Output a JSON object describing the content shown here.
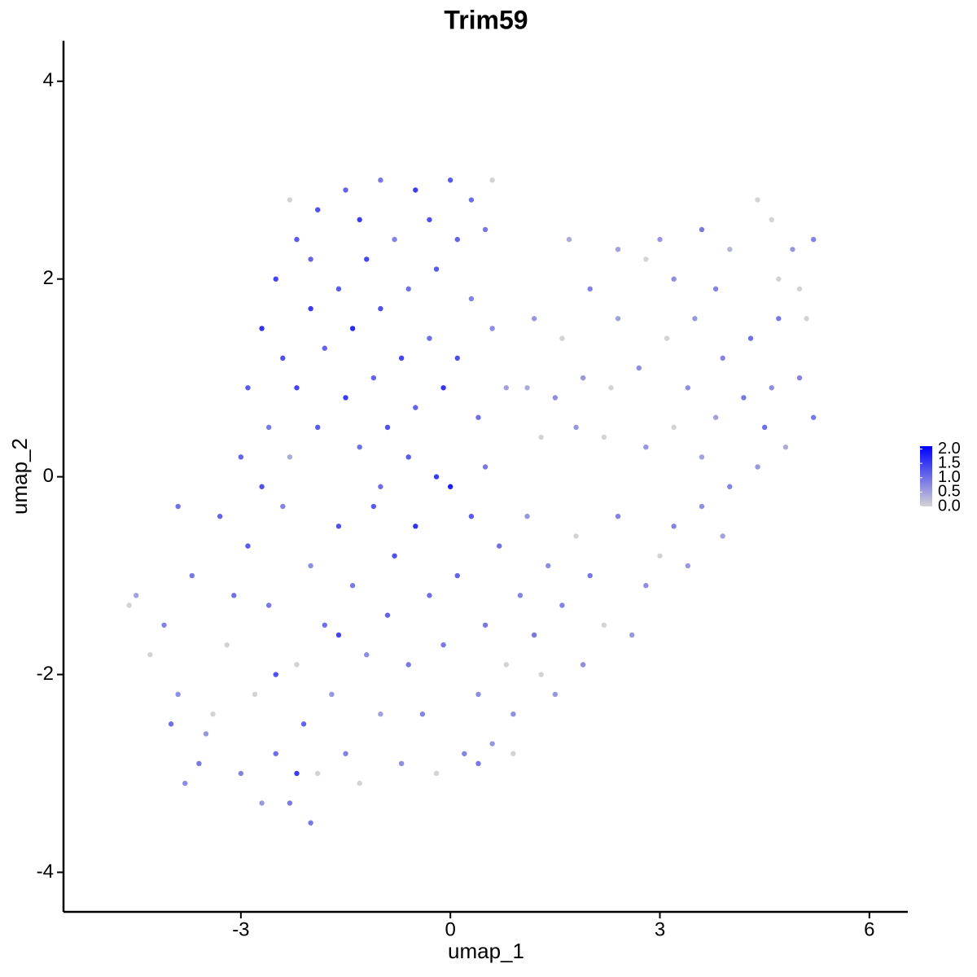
{
  "chart_data": {
    "type": "scatter",
    "title": "Trim59",
    "xlabel": "umap_1",
    "ylabel": "umap_2",
    "xlim": [
      -5.54,
      6.55
    ],
    "ylim": [
      -4.4,
      4.41
    ],
    "xticks": [
      -3,
      0,
      3,
      6
    ],
    "yticks": [
      -4,
      -2,
      0,
      2,
      4
    ],
    "colorlim": [
      0,
      2.1
    ],
    "colorbar_ticks": [
      {
        "value": 0,
        "label": "0.0"
      },
      0.5,
      {
        "value": 1,
        "label": "1.0"
      },
      1.5,
      {
        "value": 2,
        "label": "2.0"
      }
    ],
    "low_color": "#d3d3d3",
    "high_color": "#0000ff",
    "x": [
      -2.5,
      -2.2,
      -1.9,
      -1.5,
      -1.0,
      -0.5,
      0.0,
      0.3,
      -2.7,
      -2.4,
      -2.0,
      -1.6,
      -1.2,
      -0.8,
      -0.3,
      0.5,
      -2.9,
      -2.6,
      -2.2,
      -1.8,
      -1.4,
      -1.0,
      -0.6,
      -0.2,
      0.3,
      -3.0,
      -2.7,
      -2.3,
      -1.9,
      -1.5,
      -1.1,
      -0.7,
      -0.3,
      0.1,
      0.6,
      -1.3,
      -0.9,
      -0.5,
      -0.1,
      0.4,
      0.8,
      -0.2,
      0.0,
      -0.6,
      0.5,
      -2.0,
      -1.3,
      0.1,
      -2.3,
      0.6,
      1.2,
      1.6,
      2.0,
      2.4,
      2.8,
      3.2,
      3.6,
      4.0,
      4.4,
      4.6,
      4.9,
      5.2,
      5.0,
      4.7,
      4.3,
      3.9,
      3.5,
      3.1,
      2.7,
      2.3,
      1.9,
      1.5,
      1.1,
      1.3,
      1.8,
      2.2,
      3.4,
      3.8,
      4.2,
      4.6,
      5.0,
      5.2,
      4.8,
      4.4,
      4.0,
      3.6,
      3.2,
      2.8,
      4.7,
      5.1,
      4.5,
      3.0,
      2.4,
      3.8,
      1.7,
      -4.6,
      -4.5,
      -4.3,
      -4.1,
      -3.9,
      -3.7,
      -3.5,
      -3.3,
      -3.2,
      -3.0,
      -2.9,
      -2.8,
      -2.6,
      -2.5,
      -2.4,
      -2.3,
      -2.2,
      -2.1,
      -2.0,
      -1.9,
      -1.8,
      -1.7,
      -1.6,
      -1.5,
      -1.4,
      -1.3,
      -1.2,
      -1.1,
      -1.0,
      -0.9,
      -0.8,
      -0.7,
      -0.6,
      -0.5,
      -0.4,
      -0.3,
      -0.2,
      -0.1,
      -3.6,
      -3.8,
      -2.7,
      -2.0,
      -1.6,
      -2.5,
      -3.1,
      -3.4,
      -4.0,
      -2.2,
      -1.0,
      -3.9,
      0.2,
      0.4,
      0.5,
      0.6,
      0.7,
      0.8,
      0.9,
      1.0,
      1.1,
      1.2,
      1.3,
      1.4,
      1.5,
      1.6,
      1.8,
      1.9,
      2.0,
      2.2,
      2.4,
      2.6,
      2.8,
      3.0,
      3.2,
      3.4,
      3.6,
      3.9,
      0.3,
      0.1,
      0.9,
      0.4
    ],
    "y": [
      2.0,
      2.4,
      2.7,
      2.9,
      3.0,
      2.9,
      3.0,
      2.8,
      1.5,
      1.2,
      1.7,
      1.9,
      2.2,
      2.4,
      2.6,
      2.5,
      0.9,
      0.5,
      0.9,
      1.3,
      1.5,
      1.7,
      1.9,
      2.1,
      1.8,
      0.2,
      -0.1,
      0.2,
      0.5,
      0.8,
      1.0,
      1.2,
      1.4,
      1.2,
      1.5,
      0.3,
      0.5,
      0.7,
      0.9,
      0.6,
      0.9,
      0.0,
      -0.1,
      0.2,
      0.1,
      2.2,
      2.6,
      2.4,
      2.8,
      3.0,
      1.6,
      1.4,
      1.9,
      1.6,
      2.2,
      2.0,
      2.5,
      2.3,
      2.8,
      2.6,
      2.3,
      2.4,
      1.9,
      1.6,
      1.4,
      1.2,
      1.6,
      1.4,
      1.1,
      0.9,
      1.0,
      0.8,
      0.9,
      0.4,
      0.5,
      0.4,
      0.9,
      0.6,
      0.8,
      0.9,
      1.0,
      0.6,
      0.3,
      0.1,
      -0.1,
      0.2,
      0.5,
      0.3,
      2.0,
      1.6,
      0.5,
      2.4,
      2.3,
      1.9,
      2.4,
      -1.3,
      -1.2,
      -1.8,
      -1.5,
      -2.2,
      -1.0,
      -2.6,
      -0.4,
      -1.7,
      -3.0,
      -0.7,
      -2.2,
      -1.3,
      -2.8,
      -0.3,
      -3.3,
      -1.9,
      -2.5,
      -0.9,
      -3.0,
      -1.5,
      -2.2,
      -0.5,
      -2.8,
      -1.1,
      -3.1,
      -1.8,
      -0.3,
      -2.4,
      -1.4,
      -0.8,
      -2.9,
      -1.9,
      -0.5,
      -2.4,
      -1.2,
      -3.0,
      -1.7,
      -2.9,
      -3.1,
      -3.3,
      -3.5,
      -1.6,
      -2.0,
      -1.2,
      -2.4,
      -2.5,
      -3.0,
      -0.1,
      -0.3,
      -2.8,
      -2.2,
      -1.5,
      -2.7,
      -0.7,
      -1.9,
      -2.4,
      -1.2,
      -0.4,
      -1.6,
      -2.0,
      -0.9,
      -2.2,
      -1.3,
      -0.6,
      -1.9,
      -1.0,
      -1.5,
      -0.4,
      -1.6,
      -1.1,
      -0.8,
      -0.5,
      -0.9,
      -0.3,
      -0.6,
      -0.4,
      -1.0,
      -2.8,
      -2.9
    ],
    "values": [
      1.4,
      1.2,
      1.3,
      1.1,
      0.9,
      1.5,
      1.2,
      1.0,
      1.6,
      1.3,
      1.5,
      1.2,
      1.4,
      0.8,
      1.3,
      0.9,
      1.2,
      0.9,
      1.4,
      1.1,
      1.7,
      1.3,
      1.0,
      1.2,
      0.8,
      1.1,
      1.3,
      0.4,
      1.2,
      1.5,
      1.1,
      1.4,
      1.0,
      1.3,
      0.7,
      1.0,
      1.3,
      1.1,
      1.6,
      1.0,
      0.5,
      1.5,
      1.8,
      1.2,
      0.9,
      1.1,
      1.5,
      1.1,
      0,
      0,
      0.6,
      0,
      0.8,
      0.5,
      0,
      0.7,
      0.9,
      0.3,
      0,
      0,
      0.6,
      0.8,
      0,
      0.9,
      1.0,
      0.8,
      0.6,
      0,
      0.7,
      0,
      0.6,
      0.7,
      0.4,
      0,
      0.6,
      0,
      0.7,
      0.5,
      0.9,
      0.7,
      0.8,
      0.9,
      0.4,
      0.6,
      0.8,
      0.5,
      0,
      0.6,
      0,
      0,
      1.0,
      0.6,
      0.5,
      0.8,
      0.4,
      0,
      0.5,
      0,
      0.8,
      0.7,
      0.9,
      0.6,
      1.1,
      0,
      0.8,
      1.2,
      0,
      0.9,
      1.0,
      0.8,
      0.9,
      0,
      1.1,
      0.7,
      0,
      1.0,
      0.6,
      1.3,
      0.8,
      0.9,
      0,
      0.7,
      1.2,
      0.5,
      1.1,
      1.3,
      0.7,
      0.9,
      1.6,
      0.8,
      1.0,
      0,
      0.9,
      0.9,
      0.7,
      0.6,
      0.9,
      1.4,
      1.3,
      1.0,
      0,
      1.0,
      1.5,
      1.0,
      1.0,
      0.8,
      0.7,
      0.9,
      0.6,
      1.0,
      0,
      0.7,
      0.8,
      0.6,
      0.9,
      0,
      0.7,
      0.6,
      0.8,
      0,
      0.7,
      0.9,
      0,
      0.8,
      0.6,
      0.7,
      0,
      0.8,
      0.6,
      0.7,
      0.5,
      1.2,
      1.1,
      0,
      0.9
    ]
  }
}
